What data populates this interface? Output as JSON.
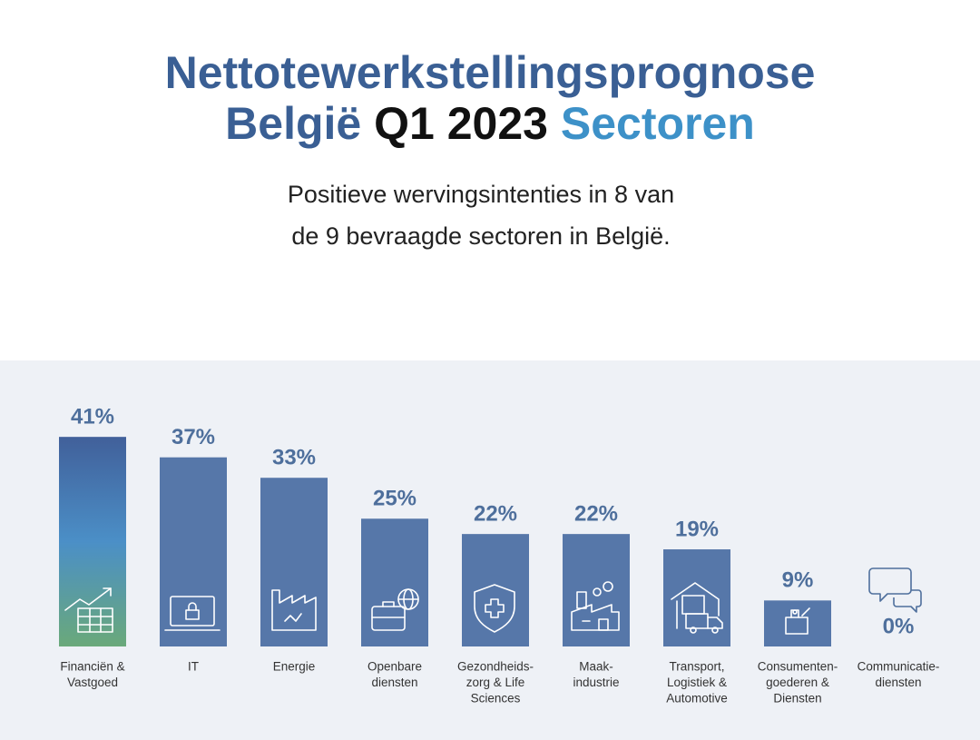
{
  "chart_data": {
    "type": "bar",
    "title": [
      "Nettotewerkstellingsprognose",
      "België",
      "Q1 2023",
      "Sectoren"
    ],
    "title_colors": [
      "#3a5f94",
      "#3a5f94",
      "#111111",
      "#3d91c8"
    ],
    "subtitle": [
      "Positieve wervingsintenties in 8 van",
      "de 9 bevraagde sectoren in België."
    ],
    "categories": [
      [
        "Financiën &",
        "Vastgoed"
      ],
      [
        "IT"
      ],
      [
        "Energie"
      ],
      [
        "Openbare",
        "diensten"
      ],
      [
        "Gezondheids-",
        "zorg & Life",
        "Sciences"
      ],
      [
        "Maak-",
        "industrie"
      ],
      [
        "Transport,",
        "Logistiek &",
        "Automotive"
      ],
      [
        "Consumenten-",
        "goederen &",
        "Diensten"
      ],
      [
        "Communicatie-",
        "diensten"
      ]
    ],
    "values": [
      41,
      37,
      33,
      25,
      22,
      22,
      19,
      9,
      0
    ],
    "value_labels": [
      "41%",
      "37%",
      "33%",
      "25%",
      "22%",
      "22%",
      "19%",
      "9%",
      "0%"
    ],
    "color": "#5677a9",
    "first_bar_gradient": [
      "#41609a",
      "#4b8fc7",
      "#6aa97a"
    ]
  }
}
